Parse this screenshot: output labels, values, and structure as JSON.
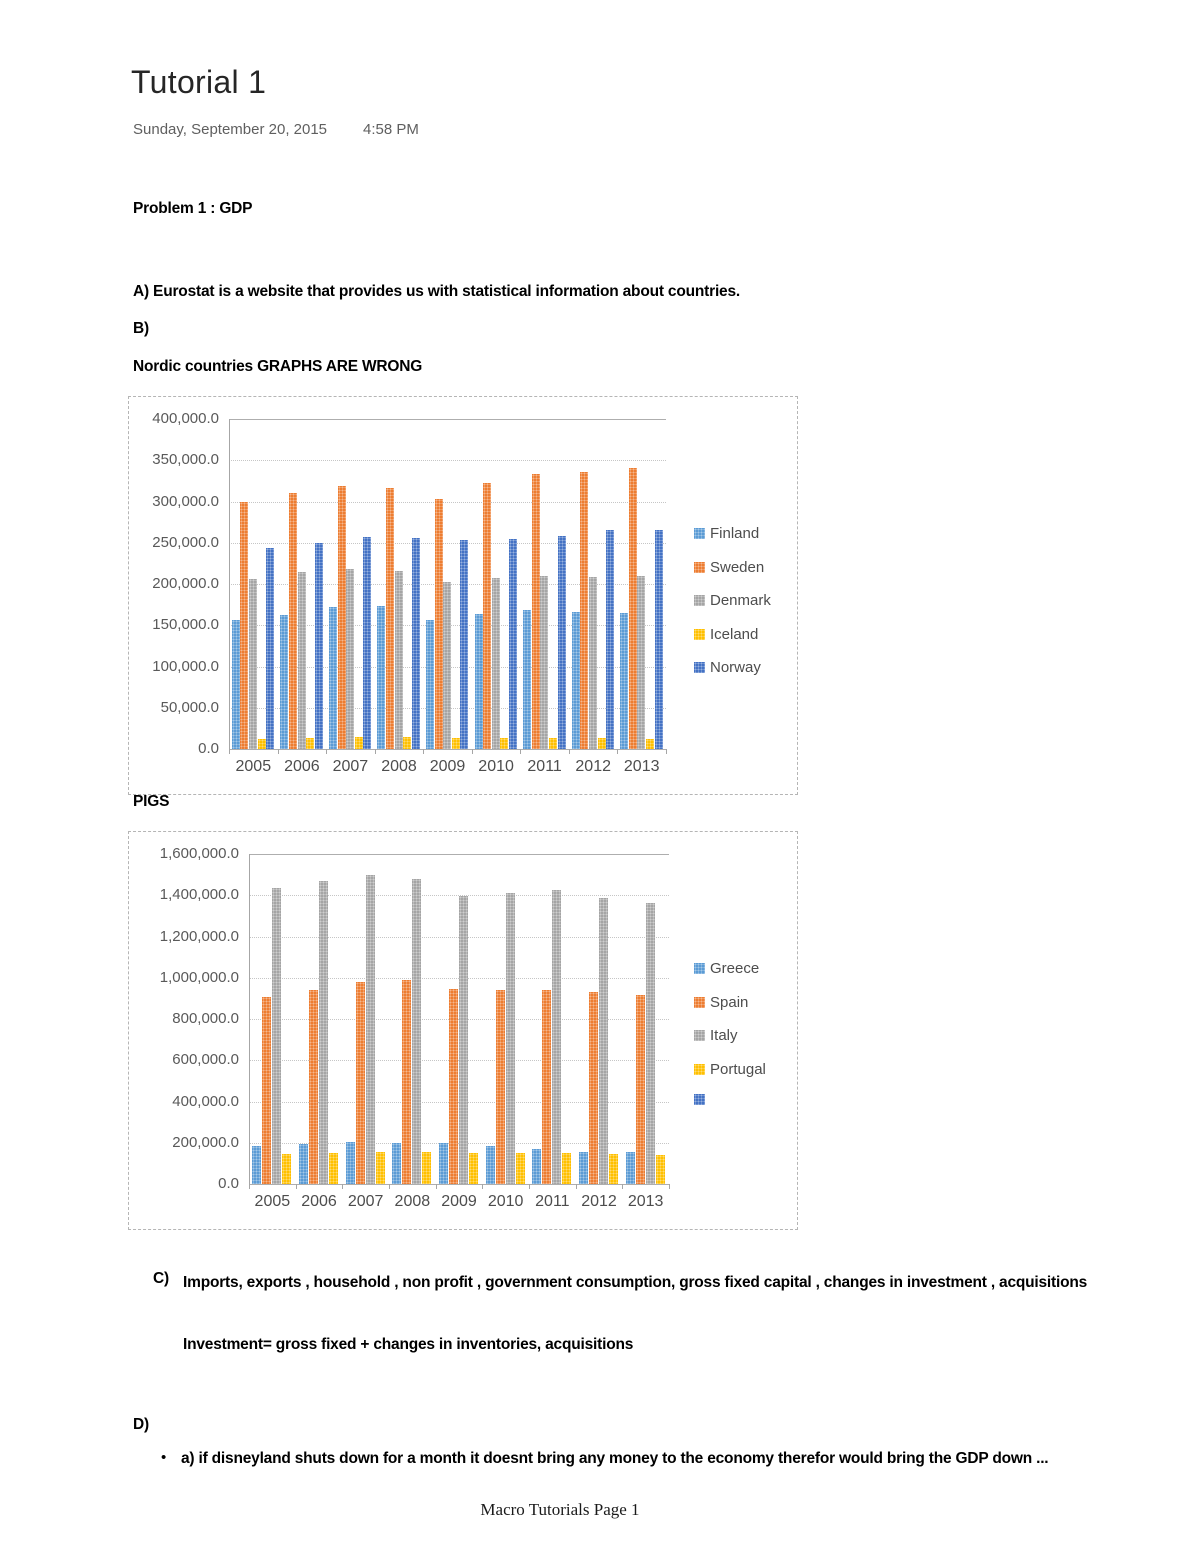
{
  "page": {
    "title": "Tutorial 1",
    "date": "Sunday, September 20, 2015",
    "time": "4:58 PM",
    "problem_heading": "Problem 1 : GDP",
    "answer_a": "A) Eurostat is a website that provides us with statistical information about countries.",
    "answer_b_label": "B)",
    "nordic_caption": "Nordic countries GRAPHS ARE WRONG",
    "pigs_caption": "PIGS",
    "answer_c_marker": "C)",
    "answer_c_text": "Imports, exports , household , non profit , government consumption, gross fixed capital , changes in investment , acquisitions",
    "investment_formula": "Investment= gross fixed + changes in inventories,  acquisitions",
    "answer_d_label": "D)",
    "bullet_marker": "•",
    "bullet_text": "a) if disneyland shuts down for a month it doesnt bring any money to the economy therefor would bring the GDP down ...",
    "footer": "Macro Tutorials Page 1"
  },
  "chart_data": [
    {
      "type": "bar",
      "title": "Nordic countries GDP",
      "categories": [
        "2005",
        "2006",
        "2007",
        "2008",
        "2009",
        "2010",
        "2011",
        "2012",
        "2013"
      ],
      "series": [
        {
          "name": "Finland",
          "color": "#5B9BD5",
          "values": [
            157000,
            163000,
            172000,
            173000,
            157000,
            164000,
            168000,
            166000,
            165000
          ]
        },
        {
          "name": "Sweden",
          "color": "#ED7D31",
          "values": [
            299000,
            310000,
            319000,
            317000,
            303000,
            322000,
            333000,
            336000,
            341000
          ]
        },
        {
          "name": "Denmark",
          "color": "#A5A5A5",
          "values": [
            206000,
            214000,
            218000,
            216000,
            203000,
            207000,
            210000,
            209000,
            210000
          ]
        },
        {
          "name": "Iceland",
          "color": "#FFC000",
          "values": [
            12000,
            13000,
            14000,
            14000,
            13000,
            13000,
            13000,
            13000,
            12000
          ]
        },
        {
          "name": "Norway",
          "color": "#4472C4",
          "values": [
            244000,
            250000,
            257000,
            256000,
            253000,
            255000,
            258000,
            265000,
            266000
          ]
        }
      ],
      "xlabel": "",
      "ylabel": "",
      "ylim": [
        0,
        400000
      ],
      "ytick_step": 50000,
      "grid": true,
      "legend_position": "right"
    },
    {
      "type": "bar",
      "title": "PIGS GDP",
      "categories": [
        "2005",
        "2006",
        "2007",
        "2008",
        "2009",
        "2010",
        "2011",
        "2012",
        "2013"
      ],
      "series": [
        {
          "name": "Greece",
          "color": "#5B9BD5",
          "values": [
            185000,
            195000,
            205000,
            200000,
            197000,
            186000,
            168000,
            157000,
            153000
          ]
        },
        {
          "name": "Spain",
          "color": "#ED7D31",
          "values": [
            905000,
            941000,
            980000,
            988000,
            947000,
            941000,
            943000,
            929000,
            917000
          ]
        },
        {
          "name": "Italy",
          "color": "#A5A5A5",
          "values": [
            1435000,
            1470000,
            1497000,
            1478000,
            1395000,
            1413000,
            1424000,
            1388000,
            1365000
          ]
        },
        {
          "name": "Portugal",
          "color": "#FFC000",
          "values": [
            145000,
            150000,
            157000,
            156000,
            150000,
            149000,
            149000,
            144000,
            142000
          ]
        },
        {
          "name": "",
          "color": "#4472C4",
          "values": []
        }
      ],
      "xlabel": "",
      "ylabel": "",
      "ylim": [
        0,
        1600000
      ],
      "ytick_step": 200000,
      "grid": true,
      "legend_position": "right"
    }
  ]
}
